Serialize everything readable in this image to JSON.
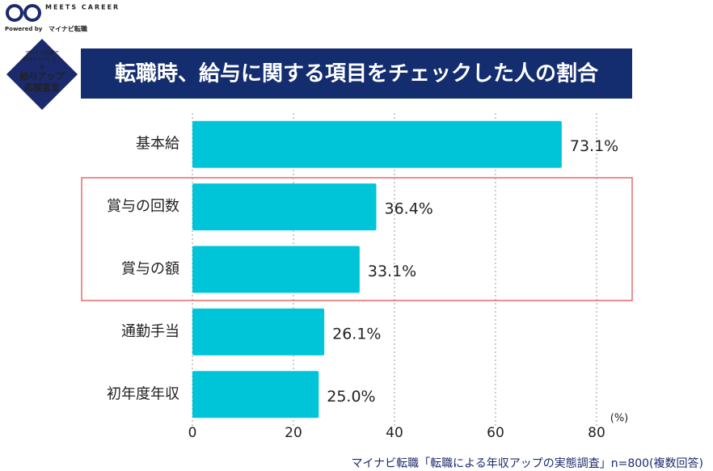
{
  "logo": {
    "brand": "MEETS CAREER",
    "powered_by": "Powered by",
    "partner": "マイナビ転職"
  },
  "badge": {
    "line1": "マイナビ転職で",
    "line2": "給与アップしよう",
    "hashtag": "#",
    "line3": "給与アップ",
    "line4": "応援宣言"
  },
  "chart_data": {
    "type": "hbar",
    "title": "転職時、給与に関する項目をチェックした人の割合",
    "categories": [
      "基本給",
      "賞与の回数",
      "賞与の額",
      "通勤手当",
      "初年度年収"
    ],
    "values": [
      73.1,
      36.4,
      33.1,
      26.1,
      25.0
    ],
    "value_labels": [
      "73.1%",
      "36.4%",
      "33.1%",
      "26.1%",
      "25.0%"
    ],
    "color": "#00c5d9",
    "xlim": [
      0,
      80
    ],
    "xticks": [
      0,
      20,
      40,
      60,
      80
    ],
    "grid": true,
    "x_label": "(%)",
    "source": "マイナビ転職「転職による年収アップの実態調査」n=800(複数回答)"
  }
}
